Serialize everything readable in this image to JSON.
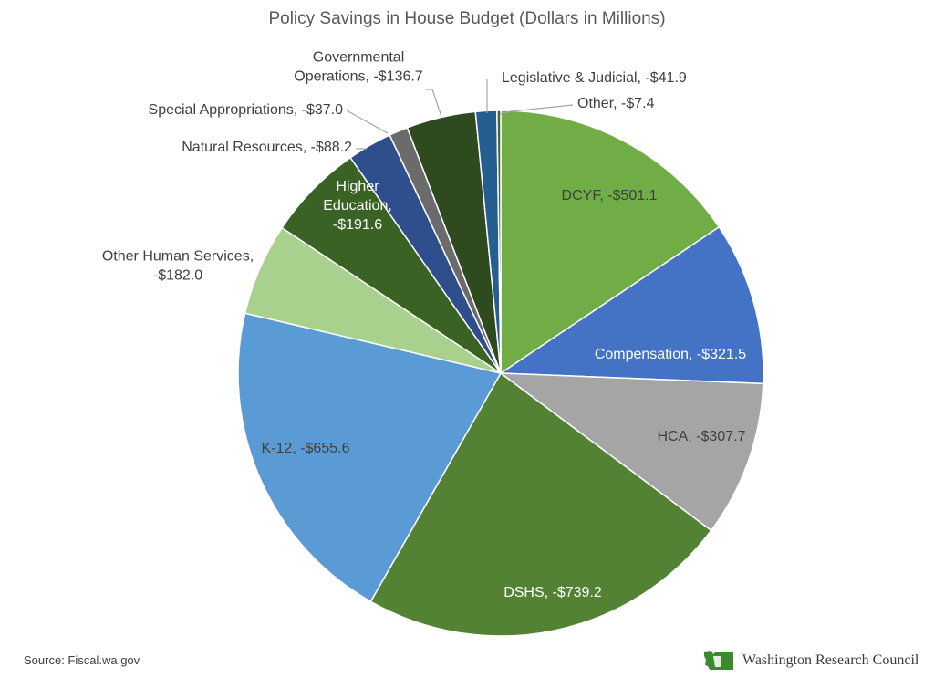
{
  "chart_data": {
    "type": "pie",
    "title": "Policy Savings in House Budget (Dollars in Millions)",
    "slices": [
      {
        "key": "dcyf",
        "label": "DCYF, -$501.1",
        "value": 501.1,
        "color": "#70ad47"
      },
      {
        "key": "compensation",
        "label": "Compensation, -$321.5",
        "value": 321.5,
        "color": "#4472c4"
      },
      {
        "key": "hca",
        "label": "HCA, -$307.7",
        "value": 307.7,
        "color": "#a5a5a5"
      },
      {
        "key": "dshs",
        "label": "DSHS, -$739.2",
        "value": 739.2,
        "color": "#548235"
      },
      {
        "key": "k12",
        "label": "K-12, -$655.6",
        "value": 655.6,
        "color": "#5b9bd5"
      },
      {
        "key": "other-human-services",
        "label": "Other Human Services, -$182.0",
        "value": 182.0,
        "color": "#a9d18e"
      },
      {
        "key": "higher-education",
        "label": "Higher Education, -$191.6",
        "value": 191.6,
        "color": "#3b6225"
      },
      {
        "key": "natural-resources",
        "label": "Natural Resources, -$88.2",
        "value": 88.2,
        "color": "#2f4e8c"
      },
      {
        "key": "special-appropriations",
        "label": "Special Appropriations, -$37.0",
        "value": 37.0,
        "color": "#6b6b6b"
      },
      {
        "key": "governmental-operations",
        "label": "Governmental Operations, -$136.7",
        "value": 136.7,
        "color": "#2f4a1f"
      },
      {
        "key": "legislative-judicial",
        "label": "Legislative & Judicial, -$41.9",
        "value": 41.9,
        "color": "#255e91"
      },
      {
        "key": "other",
        "label": "Other, -$7.4",
        "value": 7.4,
        "color": "#43682b"
      }
    ],
    "label_lines": {
      "dcyf": [
        "DCYF, -$501.1"
      ],
      "compensation": [
        "Compensation, -$321.5"
      ],
      "hca": [
        "HCA, -$307.7"
      ],
      "dshs": [
        "DSHS, -$739.2"
      ],
      "k12": [
        "K-12, -$655.6"
      ],
      "other-human-services": [
        "Other Human Services,",
        "-$182.0"
      ],
      "higher-education": [
        "Higher",
        "Education,",
        "-$191.6"
      ],
      "natural-resources": [
        "Natural Resources, -$88.2"
      ],
      "special-appropriations": [
        "Special Appropriations, -$37.0"
      ],
      "governmental-operations": [
        "Governmental",
        "Operations, -$136.7"
      ],
      "legislative-judicial": [
        "Legislative & Judicial, -$41.9"
      ],
      "other": [
        "Other, -$7.4"
      ]
    }
  },
  "source": "Source: Fiscal.wa.gov",
  "brand": {
    "name": "Washington Research Council",
    "logo_icon": "washington-state-logo-icon",
    "logo_color": "#3a8a2e"
  }
}
